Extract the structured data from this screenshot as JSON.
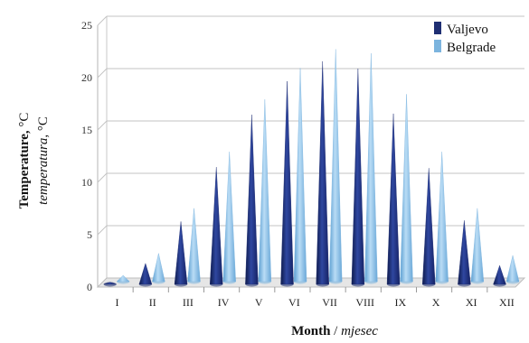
{
  "chart_data": {
    "type": "bar",
    "categories": [
      "I",
      "II",
      "III",
      "IV",
      "V",
      "VI",
      "VII",
      "VIII",
      "IX",
      "X",
      "XI",
      "XII"
    ],
    "series": [
      {
        "name": "Valjevo",
        "color": "#1f2f73",
        "values": [
          0.2,
          2.0,
          6.0,
          11.2,
          16.2,
          19.4,
          21.3,
          20.6,
          16.3,
          11.1,
          6.1,
          1.8
        ]
      },
      {
        "name": "Belgrade",
        "color": "#7cb4de",
        "values": [
          0.6,
          2.7,
          7.0,
          12.4,
          17.4,
          20.4,
          22.2,
          21.8,
          17.9,
          12.4,
          7.0,
          2.5
        ]
      }
    ],
    "ylim": [
      0,
      25
    ],
    "yticks": [
      "0",
      "5",
      "10",
      "15",
      "20",
      "25"
    ],
    "grid": true,
    "legend_position": "top-right",
    "xlabel_bold": "Month",
    "xlabel_sep": " / ",
    "xlabel_italic": "mjesec",
    "ylabel_line1_bold": "Temperature,",
    "ylabel_line1_unit": " °C",
    "ylabel_line2_italic": "temperatura,",
    "ylabel_line2_unit": " °C"
  }
}
